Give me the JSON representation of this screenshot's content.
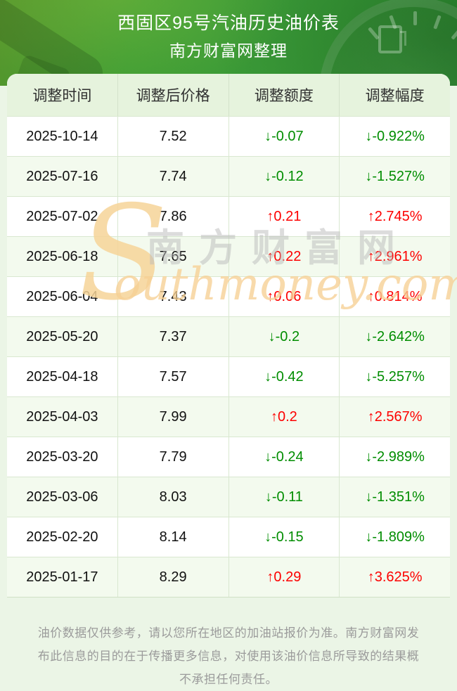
{
  "banner": {
    "title": "西固区95号汽油历史油价表",
    "subtitle": "南方财富网整理"
  },
  "table": {
    "columns": [
      "调整时间",
      "调整后价格",
      "调整额度",
      "调整幅度"
    ],
    "rows": [
      {
        "date": "2025-10-14",
        "price": "7.52",
        "change": "↓-0.07",
        "percent": "↓-0.922%",
        "direction": "down"
      },
      {
        "date": "2025-07-16",
        "price": "7.74",
        "change": "↓-0.12",
        "percent": "↓-1.527%",
        "direction": "down"
      },
      {
        "date": "2025-07-02",
        "price": "7.86",
        "change": "↑0.21",
        "percent": "↑2.745%",
        "direction": "up"
      },
      {
        "date": "2025-06-18",
        "price": "7.65",
        "change": "↑0.22",
        "percent": "↑2.961%",
        "direction": "up"
      },
      {
        "date": "2025-06-04",
        "price": "7.43",
        "change": "↑0.06",
        "percent": "↑0.814%",
        "direction": "up"
      },
      {
        "date": "2025-05-20",
        "price": "7.37",
        "change": "↓-0.2",
        "percent": "↓-2.642%",
        "direction": "down"
      },
      {
        "date": "2025-04-18",
        "price": "7.57",
        "change": "↓-0.42",
        "percent": "↓-5.257%",
        "direction": "down"
      },
      {
        "date": "2025-04-03",
        "price": "7.99",
        "change": "↑0.2",
        "percent": "↑2.567%",
        "direction": "up"
      },
      {
        "date": "2025-03-20",
        "price": "7.79",
        "change": "↓-0.24",
        "percent": "↓-2.989%",
        "direction": "down"
      },
      {
        "date": "2025-03-06",
        "price": "8.03",
        "change": "↓-0.11",
        "percent": "↓-1.351%",
        "direction": "down"
      },
      {
        "date": "2025-02-20",
        "price": "8.14",
        "change": "↓-0.15",
        "percent": "↓-1.809%",
        "direction": "down"
      },
      {
        "date": "2025-01-17",
        "price": "8.29",
        "change": "↑0.29",
        "percent": "↑3.625%",
        "direction": "up"
      }
    ],
    "colors": {
      "up_red": "#fd0000",
      "down_green": "#008d00",
      "header_bg": "#e6f3dd",
      "alt_row_bg": "#f3faee"
    }
  },
  "watermark": {
    "initial": "S",
    "cn_text": "南方财富网",
    "en_text": "outhmoney.com"
  },
  "footer": {
    "disclaimer": "油价数据仅供参考，请以您所在地区的加油站报价为准。南方财富网发布此信息的目的在于传播更多信息，对使用该油价信息所导致的结果概不承担任何责任。"
  }
}
